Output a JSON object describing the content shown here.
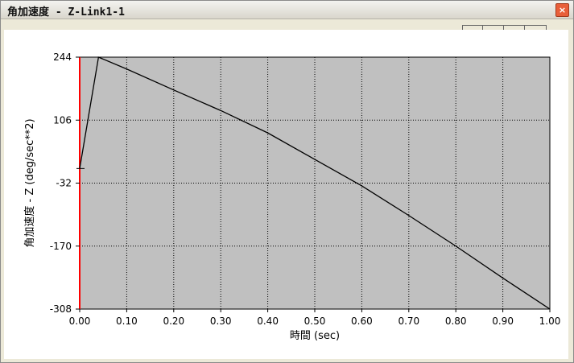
{
  "window": {
    "title": "角加速度 - Z-Link1-1",
    "close_glyph": "×"
  },
  "chart_data": {
    "type": "line",
    "xlabel": "時間 (sec)",
    "ylabel": "角加速度 - Z (deg/sec**2)",
    "xlim": [
      0,
      1.0
    ],
    "ylim": [
      -308,
      244
    ],
    "x_ticks": [
      0,
      0.1,
      0.2,
      0.3,
      0.4,
      0.5,
      0.6,
      0.7,
      0.8,
      0.9,
      1.0
    ],
    "x_tick_labels": [
      "0.00",
      "0.10",
      "0.20",
      "0.30",
      "0.40",
      "0.50",
      "0.60",
      "0.70",
      "0.80",
      "0.90",
      "1.00"
    ],
    "y_ticks": [
      244,
      106,
      -32,
      -170,
      -308
    ],
    "y_tick_labels": [
      "244",
      "106",
      "-32",
      "-170",
      "-308"
    ],
    "grid": true,
    "plot_background": "#c0c0c0",
    "line_color": "#000000",
    "left_axis_color": "#ff0000",
    "series": [
      {
        "x": [
          0.0,
          0.04,
          0.1,
          0.2,
          0.3,
          0.4,
          0.5,
          0.6,
          0.7,
          0.8,
          0.9,
          1.0
        ],
        "values": [
          0,
          244,
          218,
          172,
          127,
          78,
          20,
          -38,
          -103,
          -170,
          -240,
          -308
        ]
      }
    ]
  }
}
